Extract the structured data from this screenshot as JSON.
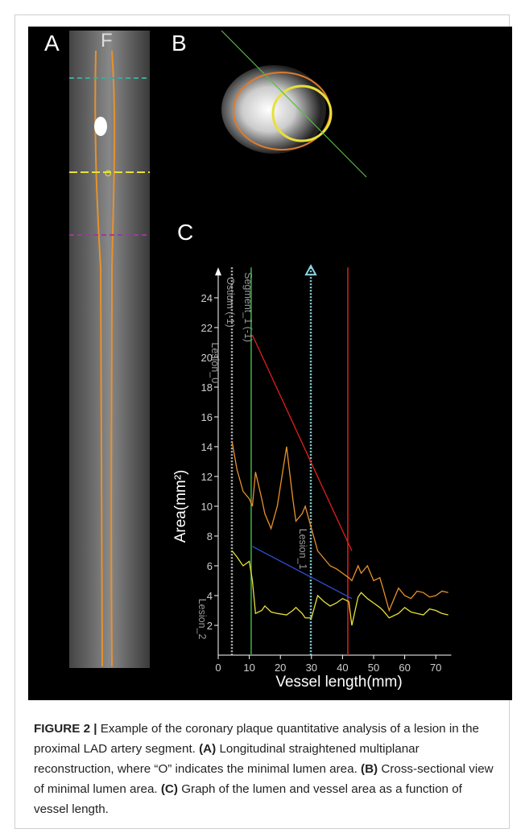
{
  "figure": {
    "panel_labels": {
      "a": "A",
      "b": "B",
      "c": "C"
    },
    "vessel_labels": {
      "f": "F",
      "o": "O"
    },
    "caption": {
      "label": "FIGURE 2 |",
      "intro": "Example of the coronary plaque quantitative analysis of a lesion in the proximal LAD artery segment.",
      "a_label": "(A)",
      "a_text": "Longitudinal straightened multiplanar reconstruction, where “O” indicates the minimal lumen area.",
      "b_label": "(B)",
      "b_text": "Cross-sectional view of minimal lumen area.",
      "c_label": "(C)",
      "c_text": "Graph of the lumen and vessel area as a function of vessel length."
    }
  },
  "chart_data": {
    "type": "line",
    "x_label": "Vessel length(mm)",
    "y_label": "Area(mm²)",
    "xlim": [
      0,
      75
    ],
    "ylim": [
      0,
      25.5
    ],
    "xticks": [
      0,
      10,
      20,
      30,
      40,
      50,
      60,
      70
    ],
    "yticks": [
      2,
      4,
      6,
      8,
      10,
      12,
      14,
      16,
      18,
      20,
      22,
      24
    ],
    "x": [
      4.5,
      6,
      8,
      10,
      11,
      12,
      14,
      15,
      17,
      19,
      22,
      24,
      25,
      27,
      28,
      30,
      32,
      34,
      36,
      38,
      40,
      42,
      43,
      45,
      46,
      48,
      50,
      52,
      53,
      55,
      58,
      60,
      62,
      64,
      66,
      68,
      70,
      72,
      74
    ],
    "series": [
      {
        "color": "#e8912c",
        "values": [
          14.3,
          12.5,
          11,
          10.5,
          10,
          12.3,
          10.5,
          9.5,
          8.5,
          10,
          14,
          10.5,
          9,
          9.5,
          10,
          8.5,
          7,
          6.5,
          6,
          5.8,
          5.5,
          5.2,
          5,
          6,
          5.5,
          6,
          5,
          5.2,
          4.5,
          3,
          4.5,
          4,
          3.8,
          4.3,
          4.2,
          3.9,
          4,
          4.3,
          4.2
        ]
      },
      {
        "color": "#e8e03a",
        "values": [
          7,
          6.6,
          6,
          6.3,
          5,
          2.8,
          3,
          3.3,
          2.9,
          2.8,
          2.7,
          3,
          3.2,
          2.8,
          2.5,
          2.5,
          4,
          3.6,
          3.3,
          3.5,
          3.8,
          3.6,
          2,
          3.9,
          4.2,
          3.8,
          3.5,
          3.2,
          3,
          2.5,
          2.8,
          3.2,
          2.9,
          2.8,
          2.7,
          3.1,
          3,
          2.8,
          2.7
        ]
      }
    ],
    "trend_lines": [
      {
        "color": "#e0201c",
        "x": [
          11,
          43
        ],
        "values": [
          21.5,
          7
        ]
      },
      {
        "color": "#2c4fd0",
        "x": [
          11,
          43
        ],
        "values": [
          7.3,
          3.8
        ]
      }
    ],
    "markers": [
      {
        "x": 4.4,
        "color": "#bbbbbb",
        "style": "dotted"
      },
      {
        "x": 10.6,
        "color": "#3fb24a",
        "style": "solid"
      },
      {
        "x": 29.8,
        "color": "#8fd6e0",
        "style": "dotted"
      },
      {
        "x": 41.7,
        "color": "#e0201c",
        "style": "solid"
      }
    ],
    "annotations": [
      "Segment_1 (-1)",
      "Ostium (-1)",
      "Lesion_0",
      "Lesion_1",
      "Lesion_2"
    ]
  }
}
